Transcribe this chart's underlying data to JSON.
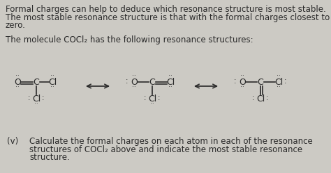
{
  "bg_color": "#cccac4",
  "text_color": "#2a2a2a",
  "font_size_body": 8.5,
  "font_size_mol": 9.0,
  "font_size_dots": 5.5,
  "line1": "Formal charges can help to deduce which resonance structure is most stable.",
  "line2": "The most stable resonance structure is that with the formal charges closest to",
  "line3": "zero.",
  "line4": "The molecule COCl₂ has the following resonance structures:",
  "label_v": "(v)",
  "line_v1": "Calculate the formal charges on each atom in each of the resonance",
  "line_v2": "structures of COCl₂ above and indicate the most stable resonance",
  "line_v3": "structure."
}
